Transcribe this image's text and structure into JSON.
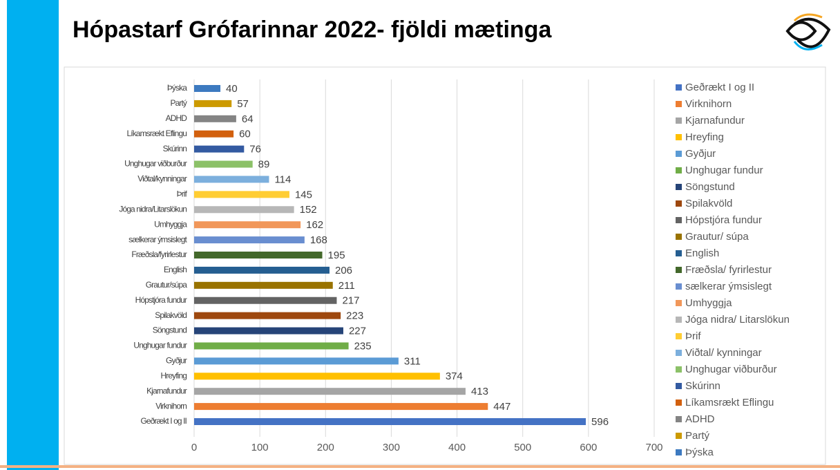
{
  "chart_data": {
    "type": "barh",
    "title": "Hópastarf Grófarinnar 2022- fjöldi mætinga",
    "categories": [
      "Geðrækt I og II",
      "Virknihorn",
      "Kjarnafundur",
      "Hreyfing",
      "Gyðjur",
      "Unghugar fundur",
      "Söngstund",
      "Spilakvöld",
      "Hópstjóra fundur",
      "Grautur/súpa",
      "English",
      "Fræðsla/fyrirlestur",
      "sælkerar ýmsislegt",
      "Umhyggja",
      "Jóga nidra/Litarslökun",
      "Þrif",
      "Viðtal/kynningar",
      "Unghugar viðburður",
      "Skúrinn",
      "Líkamsrækt Eflingu",
      "ADHD",
      "Partý",
      "Þýska"
    ],
    "legend": [
      "Geðrækt I og II",
      "Virknihorn",
      "Kjarnafundur",
      "Hreyfing",
      "Gyðjur",
      "Unghugar fundur",
      "Söngstund",
      "Spilakvöld",
      "Hópstjóra fundur",
      "Grautur/ súpa",
      "English",
      "Fræðsla/ fyrirlestur",
      "sælkerar ýmsislegt",
      "Umhyggja",
      "Jóga nidra/ Litarslökun",
      "Þrif",
      "Viðtal/ kynningar",
      "Unghugar viðburður",
      "Skúrinn",
      "Líkamsrækt Eflingu",
      "ADHD",
      "Partý",
      "Þýska"
    ],
    "values": [
      596,
      447,
      413,
      374,
      311,
      235,
      227,
      223,
      217,
      211,
      206,
      195,
      168,
      162,
      152,
      145,
      114,
      89,
      76,
      60,
      64,
      57,
      40
    ],
    "colors": [
      "#4472c4",
      "#ed7d31",
      "#a5a5a5",
      "#ffc000",
      "#5b9bd5",
      "#70ad47",
      "#264478",
      "#9e480e",
      "#636363",
      "#997300",
      "#255e91",
      "#43682b",
      "#698ed0",
      "#f1975a",
      "#b7b7b7",
      "#ffcd33",
      "#7cafdd",
      "#8cc168",
      "#335aa1",
      "#d2600e",
      "#848484",
      "#cc9a00",
      "#3d7ac0"
    ],
    "xlim": [
      0,
      700
    ],
    "xticks": [
      0,
      100,
      200,
      300,
      400,
      500,
      600,
      700
    ],
    "grid": true,
    "legend_position": "right"
  }
}
